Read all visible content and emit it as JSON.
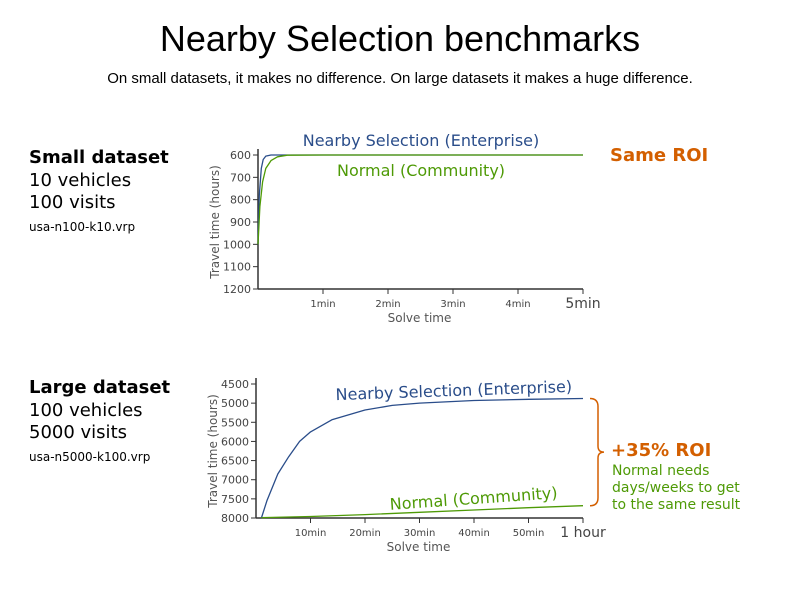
{
  "title": "Nearby Selection benchmarks",
  "subtitle": "On small datasets, it makes no difference. On large datasets it makes a huge difference.",
  "colors": {
    "enterprise": "#2a4d8a",
    "community": "#4e9a06",
    "roi": "#d35f00",
    "axis": "#333333"
  },
  "panels": [
    {
      "dataset": {
        "name": "Small dataset",
        "lines": [
          "10 vehicles",
          "100 visits"
        ],
        "file": "usa-n100-k10.vrp"
      },
      "roi": {
        "label": "Same ROI",
        "note": []
      },
      "chart_data": {
        "type": "line",
        "xlabel": "Solve time",
        "ylabel": "Travel time (hours)",
        "xlim": [
          0,
          5
        ],
        "ylim": [
          1200,
          600
        ],
        "y_inverted": true,
        "xticks": [
          {
            "v": 1,
            "label": "1min"
          },
          {
            "v": 2,
            "label": "2min"
          },
          {
            "v": 3,
            "label": "3min"
          },
          {
            "v": 4,
            "label": "4min"
          },
          {
            "v": 5,
            "label": "5min"
          }
        ],
        "yticks": [
          600,
          700,
          800,
          900,
          1000,
          1100,
          1200
        ],
        "series": [
          {
            "name": "Nearby Selection (Enterprise)",
            "x": [
              0,
              0.02,
              0.05,
              0.08,
              0.12,
              0.2,
              0.5,
              5
            ],
            "y": [
              1000,
              780,
              660,
              620,
              605,
              600,
              600,
              600
            ]
          },
          {
            "name": "Normal (Community)",
            "x": [
              0,
              0.03,
              0.07,
              0.12,
              0.2,
              0.3,
              0.45,
              1,
              5
            ],
            "y": [
              1000,
              830,
              720,
              660,
              625,
              608,
              601,
              600,
              600
            ]
          }
        ]
      }
    },
    {
      "dataset": {
        "name": "Large dataset",
        "lines": [
          "100 vehicles",
          "5000 visits"
        ],
        "file": "usa-n5000-k100.vrp"
      },
      "roi": {
        "label": "+35% ROI",
        "note": [
          "Normal needs",
          "days/weeks to get",
          "to the same result"
        ]
      },
      "chart_data": {
        "type": "line",
        "xlabel": "Solve time",
        "ylabel": "Travel time (hours)",
        "xlim": [
          0,
          60
        ],
        "ylim": [
          8000,
          4500
        ],
        "y_inverted": true,
        "xticks": [
          {
            "v": 10,
            "label": "10min"
          },
          {
            "v": 20,
            "label": "20min"
          },
          {
            "v": 30,
            "label": "30min"
          },
          {
            "v": 40,
            "label": "40min"
          },
          {
            "v": 50,
            "label": "50min"
          },
          {
            "v": 60,
            "label": "1 hour"
          }
        ],
        "yticks": [
          4500,
          5000,
          5500,
          6000,
          6500,
          7000,
          7500,
          8000
        ],
        "series": [
          {
            "name": "Nearby Selection (Enterprise)",
            "x": [
              1,
              2,
              4,
              6,
              8,
              10,
              14,
              20,
              25,
              30,
              40,
              50,
              60
            ],
            "y": [
              8000,
              7550,
              6850,
              6400,
              6000,
              5750,
              5430,
              5180,
              5060,
              5000,
              4930,
              4900,
              4880
            ]
          },
          {
            "name": "Normal (Community)",
            "x": [
              1,
              10,
              20,
              30,
              40,
              50,
              60
            ],
            "y": [
              7990,
              7960,
              7910,
              7850,
              7790,
              7730,
              7680
            ]
          }
        ]
      }
    }
  ]
}
